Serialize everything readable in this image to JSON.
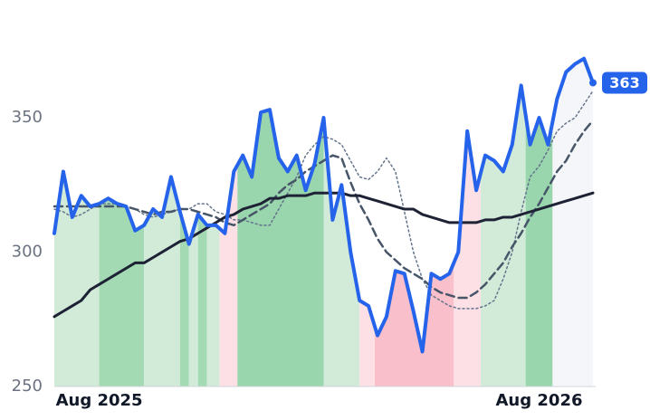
{
  "chart_data": {
    "type": "line",
    "x": [
      0,
      1,
      2,
      3,
      4,
      5,
      6,
      7,
      8,
      9,
      10,
      11,
      12,
      13,
      14,
      15,
      16,
      17,
      18,
      19,
      20,
      21,
      22,
      23,
      24,
      25,
      26,
      27,
      28,
      29,
      30,
      31,
      32,
      33,
      34,
      35,
      36,
      37,
      38,
      39,
      40,
      41,
      42,
      43,
      44,
      45,
      46,
      47,
      48,
      49,
      50,
      51,
      52,
      53,
      54,
      55,
      56,
      57,
      58,
      59,
      60
    ],
    "series": [
      {
        "color": "#2563eb",
        "style": "solid",
        "width": 4,
        "values": [
          307,
          330,
          313,
          321,
          317,
          318,
          320,
          318,
          317,
          308,
          310,
          316,
          313,
          328,
          315,
          303,
          314,
          310,
          310,
          307,
          330,
          336,
          328,
          352,
          353,
          335,
          330,
          336,
          323,
          333,
          350,
          312,
          325,
          300,
          282,
          280,
          269,
          276,
          293,
          292,
          278,
          263,
          292,
          290,
          292,
          300,
          345,
          323,
          336,
          334,
          330,
          340,
          362,
          340,
          350,
          340,
          357,
          367,
          370,
          372,
          363
        ]
      },
      {
        "color": "#1e2235",
        "style": "solid",
        "width": 3,
        "values": [
          276,
          278,
          280,
          282,
          286,
          288,
          290,
          292,
          294,
          296,
          296,
          298,
          300,
          302,
          304,
          305,
          307,
          309,
          311,
          313,
          314,
          316,
          317,
          318,
          320,
          320,
          321,
          321,
          321,
          322,
          322,
          322,
          322,
          321,
          321,
          320,
          319,
          318,
          317,
          316,
          316,
          314,
          313,
          312,
          311,
          311,
          311,
          311,
          312,
          312,
          313,
          313,
          314,
          315,
          316,
          317,
          318,
          319,
          320,
          321,
          322
        ]
      },
      {
        "color": "#475569",
        "style": "dashed",
        "width": 2.5,
        "values": [
          317,
          317,
          317,
          317,
          317,
          317,
          317,
          317,
          317,
          316,
          315,
          314,
          315,
          315,
          316,
          316,
          315,
          314,
          313,
          311,
          310,
          312,
          314,
          316,
          318,
          322,
          325,
          327,
          330,
          332,
          334,
          336,
          335,
          326,
          318,
          312,
          305,
          300,
          297,
          294,
          292,
          290,
          287,
          285,
          284,
          283,
          283,
          285,
          288,
          292,
          296,
          302,
          307,
          313,
          318,
          324,
          330,
          334,
          340,
          345,
          349
        ]
      },
      {
        "color": "#64748b",
        "style": "dotted",
        "width": 1.5,
        "values": [
          316,
          315,
          313,
          314,
          316,
          318,
          318,
          318,
          317,
          316,
          314,
          313,
          314,
          315,
          316,
          316,
          318,
          318,
          315,
          314,
          312,
          312,
          311,
          310,
          310,
          316,
          322,
          328,
          336,
          340,
          343,
          342,
          340,
          334,
          328,
          327,
          330,
          335,
          330,
          315,
          300,
          290,
          284,
          282,
          280,
          279,
          279,
          279,
          280,
          282,
          290,
          300,
          315,
          328,
          332,
          338,
          345,
          348,
          350,
          355,
          360
        ]
      }
    ],
    "regions": [
      {
        "start": 0,
        "end": 5,
        "color": "#d2ebd9"
      },
      {
        "start": 5,
        "end": 10,
        "color": "#a3d9b3"
      },
      {
        "start": 10,
        "end": 14,
        "color": "#d2ebd9"
      },
      {
        "start": 14,
        "end": 15,
        "color": "#a3d9b3"
      },
      {
        "start": 15,
        "end": 16,
        "color": "#d2ebd9"
      },
      {
        "start": 16,
        "end": 17,
        "color": "#a3d9b3"
      },
      {
        "start": 17,
        "end": 18.4,
        "color": "#d2ebd9"
      },
      {
        "start": 18.4,
        "end": 20.4,
        "color": "#fde0e5"
      },
      {
        "start": 20.4,
        "end": 30,
        "color": "#99d5ad"
      },
      {
        "start": 30,
        "end": 34,
        "color": "#d2ebd9"
      },
      {
        "start": 34,
        "end": 35.7,
        "color": "#fde0e5"
      },
      {
        "start": 35.7,
        "end": 44.5,
        "color": "#f9bfca"
      },
      {
        "start": 44.5,
        "end": 47.5,
        "color": "#fde0e5"
      },
      {
        "start": 47.5,
        "end": 52.5,
        "color": "#d2ebd9"
      },
      {
        "start": 52.5,
        "end": 55.5,
        "color": "#99d5ad"
      },
      {
        "start": 55.5,
        "end": 60,
        "color": "#f5f6f9"
      }
    ],
    "xlim": [
      0,
      60
    ],
    "xticks": [
      {
        "value": 5,
        "label": "Aug 2025"
      },
      {
        "value": 54,
        "label": "Aug 2026"
      }
    ],
    "ylim": [
      250,
      380
    ],
    "yticks": [
      250,
      300,
      350
    ]
  }
}
